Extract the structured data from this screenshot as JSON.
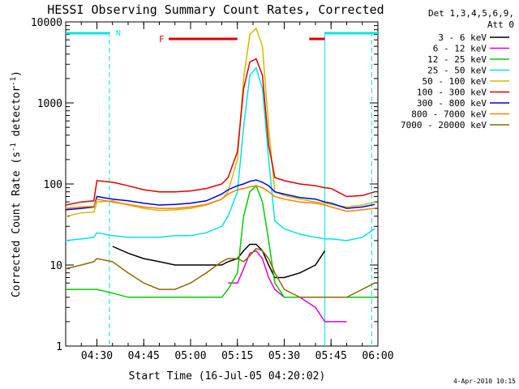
{
  "chart_data": {
    "type": "line",
    "title": "HESSI Observing Summary Count Rates, Corrected",
    "xlabel": "Start Time (16-Jul-05 04:20:02)",
    "ylabel": "Corrected Count Rate (s⁻¹ detector⁻¹)",
    "ylabel_prefix": "Corrected Count Rate (s",
    "ylabel_mid": " detector",
    "ylabel_close": ")",
    "ylabel_sup": "-1",
    "y_scale": "log",
    "ylim": [
      1,
      10000
    ],
    "xlim": [
      "04:20",
      "06:00"
    ],
    "x_ticks": [
      "04:30",
      "04:45",
      "05:00",
      "05:15",
      "05:30",
      "05:45",
      "06:00"
    ],
    "y_ticks": [
      "1",
      "10",
      "100",
      "1000",
      "10000"
    ],
    "detector_info_line1": "Det 1,3,4,5,6,9,",
    "detector_info_line2": "Att 0",
    "legend_position": "top-right outside plot",
    "date_stamp": "4-Apr-2010 10:15",
    "flag_N_label": "N",
    "flag_F_label": "F",
    "flags": {
      "night_intervals": [
        [
          "04:20",
          "04:34"
        ],
        [
          "05:43",
          "06:00"
        ]
      ],
      "flare_intervals": [
        [
          "04:53",
          "05:15"
        ],
        [
          "05:38",
          "05:43"
        ]
      ],
      "night_color": "#00e5e5",
      "flare_color": "#e00000"
    },
    "vertical_lines": [
      {
        "time": "04:34",
        "style": "dashed",
        "color": "#00e5e5"
      },
      {
        "time": "05:43",
        "style": "solid",
        "color": "#00e5e5"
      },
      {
        "time": "05:58",
        "style": "dashed",
        "color": "#00e5e5"
      }
    ],
    "x": [
      "04:20",
      "04:25",
      "04:29",
      "04:30",
      "04:35",
      "04:40",
      "04:45",
      "04:50",
      "04:55",
      "05:00",
      "05:05",
      "05:10",
      "05:12",
      "05:15",
      "05:17",
      "05:19",
      "05:21",
      "05:23",
      "05:25",
      "05:27",
      "05:30",
      "05:35",
      "05:40",
      "05:43",
      "05:45",
      "05:50",
      "05:55",
      "05:59"
    ],
    "series": [
      {
        "name": "3 - 6 keV",
        "color": "#000000",
        "values": [
          null,
          null,
          null,
          null,
          17,
          14,
          12,
          11,
          10,
          10,
          10,
          10,
          11,
          12,
          15,
          18,
          18,
          15,
          10,
          7,
          7,
          8,
          10,
          15,
          null,
          null,
          null,
          null
        ]
      },
      {
        "name": "6 - 12 keV",
        "color": "#e000e0",
        "values": [
          null,
          null,
          null,
          null,
          null,
          null,
          null,
          null,
          null,
          null,
          null,
          null,
          6,
          6,
          9,
          14,
          15,
          12,
          7,
          5,
          4,
          4,
          3,
          2,
          2,
          2,
          null,
          null
        ]
      },
      {
        "name": "12 - 25 keV",
        "color": "#00cc00",
        "values": [
          5,
          5,
          5,
          5,
          4.5,
          4,
          4,
          4,
          4,
          4,
          4,
          4,
          5,
          8,
          40,
          80,
          95,
          60,
          20,
          6,
          4,
          4,
          4,
          4,
          4,
          4,
          4,
          4
        ]
      },
      {
        "name": "25 - 50 keV",
        "color": "#00e5e5",
        "values": [
          20,
          21,
          22,
          25,
          23,
          22,
          22,
          22,
          23,
          23,
          25,
          30,
          40,
          80,
          500,
          2200,
          2700,
          1500,
          200,
          35,
          28,
          24,
          22,
          21,
          21,
          20,
          22,
          28
        ]
      },
      {
        "name": "50 - 100 keV",
        "color": "#d4b800",
        "values": [
          40,
          44,
          45,
          60,
          62,
          55,
          50,
          47,
          48,
          50,
          55,
          65,
          80,
          200,
          2000,
          7000,
          8300,
          5000,
          500,
          80,
          72,
          65,
          60,
          58,
          56,
          52,
          55,
          60
        ]
      },
      {
        "name": "100 - 300 keV",
        "color": "#dd0000",
        "values": [
          55,
          60,
          62,
          110,
          105,
          95,
          85,
          80,
          80,
          82,
          88,
          100,
          120,
          250,
          1500,
          3200,
          3500,
          2200,
          300,
          120,
          110,
          100,
          95,
          90,
          88,
          70,
          72,
          80
        ]
      },
      {
        "name": "300 - 800 keV",
        "color": "#0000dd",
        "values": [
          48,
          50,
          52,
          70,
          65,
          62,
          58,
          55,
          56,
          58,
          62,
          75,
          85,
          95,
          100,
          108,
          112,
          105,
          95,
          80,
          75,
          68,
          65,
          60,
          58,
          50,
          52,
          56
        ]
      },
      {
        "name": "800 - 7000 keV",
        "color": "#ff8000",
        "values": [
          50,
          52,
          53,
          65,
          60,
          56,
          52,
          50,
          50,
          52,
          56,
          65,
          75,
          85,
          88,
          92,
          95,
          90,
          80,
          70,
          65,
          60,
          58,
          55,
          52,
          46,
          48,
          50
        ]
      },
      {
        "name": "7000 - 20000 keV",
        "color": "#8c6a00",
        "values": [
          9,
          10,
          11,
          12,
          11,
          8,
          6,
          5,
          5,
          6,
          8,
          11,
          12,
          12,
          11,
          13,
          16,
          15,
          12,
          8,
          5,
          4,
          4,
          4,
          4,
          4,
          5,
          6
        ]
      }
    ]
  }
}
